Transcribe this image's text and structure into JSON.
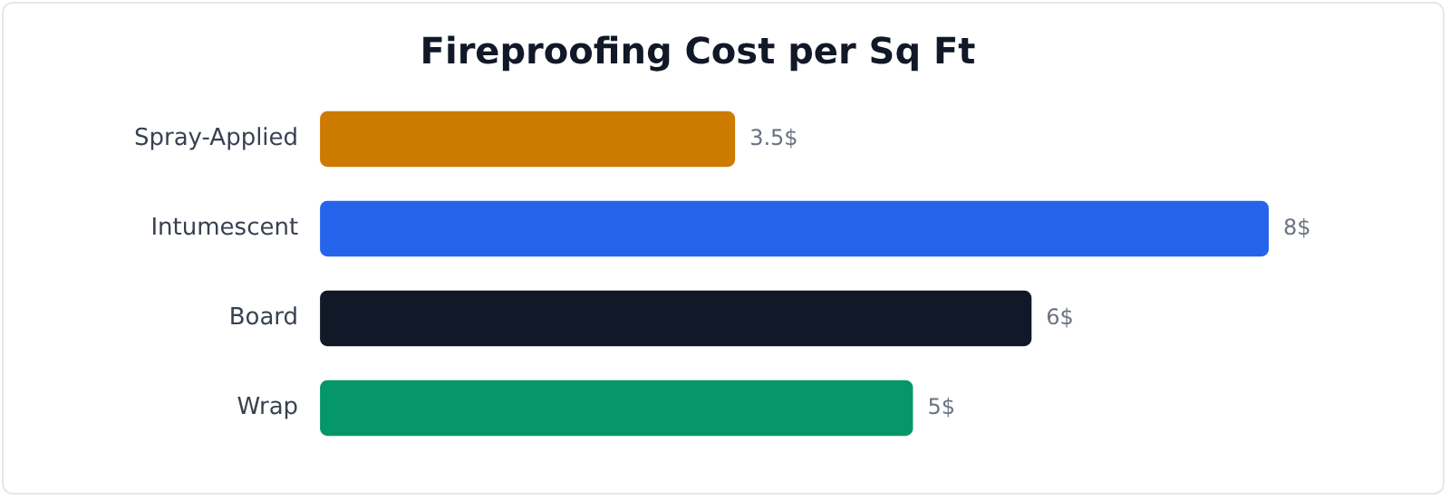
{
  "chart_data": {
    "type": "bar",
    "orientation": "horizontal",
    "title": "Fireproofing Cost per Sq Ft",
    "categories": [
      "Spray-Applied",
      "Intumescent",
      "Board",
      "Wrap"
    ],
    "values": [
      3.5,
      8,
      6,
      5
    ],
    "colors": [
      "#cc7a00",
      "#2563eb",
      "#111827",
      "#059669"
    ],
    "value_labels": [
      "3.5$",
      "8$",
      "6$",
      "5$"
    ],
    "xlim": [
      0,
      8
    ],
    "tick_labels": "y",
    "legend": false
  }
}
